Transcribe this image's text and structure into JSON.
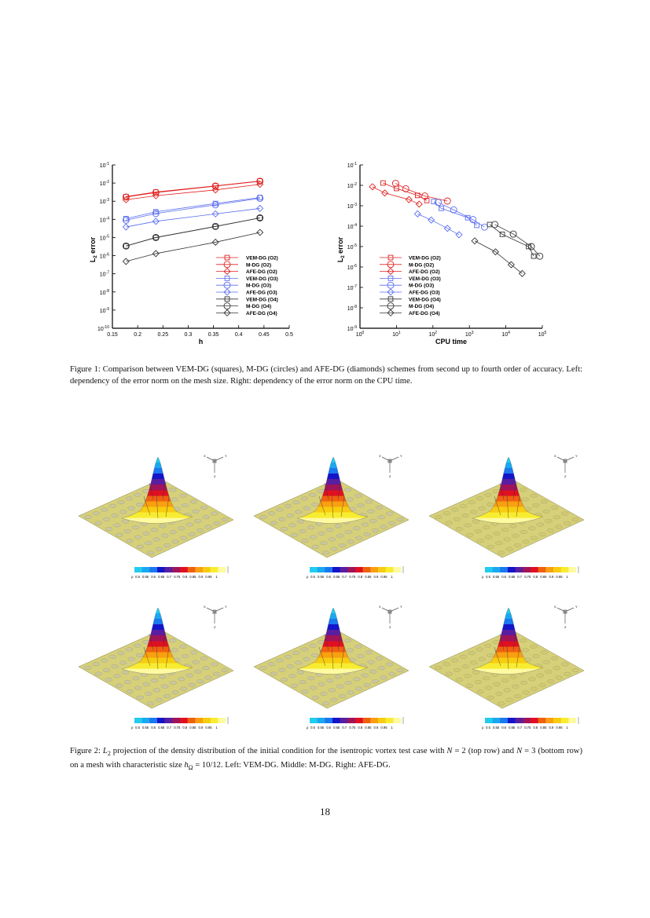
{
  "chart_data": [
    {
      "type": "line",
      "xlabel": "h",
      "ylabel": {
        "main": "L",
        "sub": "2",
        "rest": " error"
      },
      "xscale": "linear",
      "yscale": "log",
      "xlim": [
        0.15,
        0.5
      ],
      "ylim": [
        1e-10,
        0.1
      ],
      "xticks": [
        "0.15",
        "0.2",
        "0.25",
        "0.3",
        "0.35",
        "0.4",
        "0.45",
        "0.5"
      ],
      "yticks": [
        {
          "b": "10",
          "e": "-1"
        },
        {
          "b": "10",
          "e": "-2"
        },
        {
          "b": "10",
          "e": "-3"
        },
        {
          "b": "10",
          "e": "-4"
        },
        {
          "b": "10",
          "e": "-5"
        },
        {
          "b": "10",
          "e": "-6"
        },
        {
          "b": "10",
          "e": "-7"
        },
        {
          "b": "10",
          "e": "-8"
        },
        {
          "b": "10",
          "e": "-9"
        },
        {
          "b": "10",
          "e": "-10"
        }
      ],
      "legend_position": "bottom-right",
      "series": [
        {
          "name": "VEM-DG (O2)",
          "color": "#e02020",
          "marker": "square",
          "x": [
            0.177,
            0.236,
            0.354,
            0.442
          ],
          "y": [
            0.0018,
            0.0032,
            0.007,
            0.013
          ]
        },
        {
          "name": "M-DG (O2)",
          "color": "#e02020",
          "marker": "circle",
          "x": [
            0.177,
            0.236,
            0.354,
            0.442
          ],
          "y": [
            0.0017,
            0.003,
            0.0068,
            0.0125
          ]
        },
        {
          "name": "AFE-DG (O2)",
          "color": "#e02020",
          "marker": "diamond",
          "x": [
            0.177,
            0.236,
            0.354,
            0.442
          ],
          "y": [
            0.0012,
            0.002,
            0.0042,
            0.0085
          ]
        },
        {
          "name": "VEM-DG (O3)",
          "color": "#5a6cf0",
          "marker": "square",
          "x": [
            0.177,
            0.236,
            0.354,
            0.442
          ],
          "y": [
            0.00011,
            0.00026,
            0.00075,
            0.0016
          ]
        },
        {
          "name": "M-DG (O3)",
          "color": "#5a6cf0",
          "marker": "circle",
          "x": [
            0.177,
            0.236,
            0.354,
            0.442
          ],
          "y": [
            9e-05,
            0.00021,
            0.00063,
            0.00145
          ]
        },
        {
          "name": "AFE-DG (O3)",
          "color": "#5a6cf0",
          "marker": "diamond",
          "x": [
            0.177,
            0.236,
            0.354,
            0.442
          ],
          "y": [
            3.8e-05,
            7.8e-05,
            0.0002,
            0.0004
          ]
        },
        {
          "name": "VEM-DG (O4)",
          "color": "#333333",
          "marker": "square",
          "x": [
            0.177,
            0.236,
            0.354,
            0.442
          ],
          "y": [
            3.4e-06,
            1e-05,
            4e-05,
            0.00012
          ]
        },
        {
          "name": "M-DG (O4)",
          "color": "#333333",
          "marker": "circle",
          "x": [
            0.177,
            0.236,
            0.354,
            0.442
          ],
          "y": [
            3.4e-06,
            1e-05,
            4.1e-05,
            0.00012
          ]
        },
        {
          "name": "AFE-DG (O4)",
          "color": "#333333",
          "marker": "diamond",
          "x": [
            0.177,
            0.236,
            0.354,
            0.442
          ],
          "y": [
            4.8e-07,
            1.3e-06,
            5.5e-06,
            1.9e-05
          ]
        }
      ]
    },
    {
      "type": "line",
      "xlabel": "CPU time",
      "ylabel": {
        "main": "L",
        "sub": "2",
        "rest": " error"
      },
      "xscale": "log",
      "yscale": "log",
      "xlim": [
        1,
        100000
      ],
      "ylim": [
        1e-09,
        0.1
      ],
      "xticks": [
        {
          "b": "10",
          "e": "0"
        },
        {
          "b": "10",
          "e": "1"
        },
        {
          "b": "10",
          "e": "2"
        },
        {
          "b": "10",
          "e": "3"
        },
        {
          "b": "10",
          "e": "4"
        },
        {
          "b": "10",
          "e": "5"
        }
      ],
      "yticks": [
        {
          "b": "10",
          "e": "-1"
        },
        {
          "b": "10",
          "e": "-2"
        },
        {
          "b": "10",
          "e": "-3"
        },
        {
          "b": "10",
          "e": "-4"
        },
        {
          "b": "10",
          "e": "-5"
        },
        {
          "b": "10",
          "e": "-6"
        },
        {
          "b": "10",
          "e": "-7"
        },
        {
          "b": "10",
          "e": "-8"
        },
        {
          "b": "10",
          "e": "-9"
        }
      ],
      "legend_position": "bottom-left",
      "series": [
        {
          "name": "VEM-DG (O2)",
          "color": "#e02020",
          "marker": "square",
          "x": [
            4.3,
            10,
            38,
            68
          ],
          "y": [
            0.013,
            0.007,
            0.0032,
            0.0018
          ]
        },
        {
          "name": "M-DG (O2)",
          "color": "#e02020",
          "marker": "circle",
          "x": [
            9.5,
            18,
            60,
            250
          ],
          "y": [
            0.0125,
            0.0068,
            0.003,
            0.0017
          ]
        },
        {
          "name": "AFE-DG (O2)",
          "color": "#e02020",
          "marker": "diamond",
          "x": [
            2.2,
            4.8,
            22,
            42
          ],
          "y": [
            0.0085,
            0.0042,
            0.002,
            0.0012
          ]
        },
        {
          "name": "VEM-DG (O3)",
          "color": "#5a6cf0",
          "marker": "square",
          "x": [
            105,
            170,
            900,
            1600
          ],
          "y": [
            0.0016,
            0.00075,
            0.00026,
            0.00011
          ]
        },
        {
          "name": "M-DG (O3)",
          "color": "#5a6cf0",
          "marker": "circle",
          "x": [
            140,
            370,
            1250,
            2600
          ],
          "y": [
            0.00145,
            0.00063,
            0.00021,
            9e-05
          ]
        },
        {
          "name": "AFE-DG (O3)",
          "color": "#5a6cf0",
          "marker": "diamond",
          "x": [
            38,
            90,
            250,
            520
          ],
          "y": [
            0.0004,
            0.0002,
            7.8e-05,
            3.8e-05
          ]
        },
        {
          "name": "VEM-DG (O4)",
          "color": "#333333",
          "marker": "square",
          "x": [
            3600,
            8000,
            42000,
            58000
          ],
          "y": [
            0.00012,
            4e-05,
            1e-05,
            3.4e-06
          ]
        },
        {
          "name": "M-DG (O4)",
          "color": "#333333",
          "marker": "circle",
          "x": [
            5000,
            16000,
            50000,
            85000
          ],
          "y": [
            0.00012,
            4.1e-05,
            1e-05,
            3.4e-06
          ]
        },
        {
          "name": "AFE-DG (O4)",
          "color": "#333333",
          "marker": "diamond",
          "x": [
            1400,
            5200,
            14000,
            28000
          ],
          "y": [
            1.9e-05,
            5.5e-06,
            1.3e-06,
            4.8e-07
          ]
        }
      ]
    }
  ],
  "figure1": {
    "caption": "Figure 1: Comparison between VEM-DG (squares), M-DG (circles) and AFE-DG (diamonds) schemes from second up to fourth order of accuracy. Left: dependency of the error norm on the mesh size. Right: dependency of the error norm on the CPU time."
  },
  "figure2": {
    "caption_parts": [
      "Figure 2: ",
      "L",
      "2",
      " projection of the density distribution of the initial condition for the isentropic vortex test case with ",
      "N",
      " = 2 (top row) and ",
      "N",
      " = 3 (bottom row) on a mesh with characteristic size ",
      "h",
      "Ω",
      " = 10/12. Left: VEM-DG. Middle: M-DG. Right: AFE-DG."
    ],
    "colorbar_var": "ρ",
    "colorbar_ticks": [
      "0.5",
      "0.55",
      "0.6",
      "0.65",
      "0.7",
      "0.75",
      "0.8",
      "0.85",
      "0.9",
      "0.95",
      "1"
    ],
    "colorbar_colors": [
      "#22ccf0",
      "#1aa8f0",
      "#1a78f0",
      "#1414c8",
      "#5a1ea0",
      "#a0145a",
      "#e01020",
      "#f06010",
      "#f8a010",
      "#f8cc10",
      "#f8ec30",
      "#fdfaa0"
    ],
    "axes_labels": {
      "x": "X",
      "y": "Y",
      "z": "Z"
    },
    "panels": [
      {
        "row": "N = 2",
        "scheme": "VEM-DG"
      },
      {
        "row": "N = 2",
        "scheme": "M-DG"
      },
      {
        "row": "N = 2",
        "scheme": "AFE-DG"
      },
      {
        "row": "N = 3",
        "scheme": "VEM-DG"
      },
      {
        "row": "N = 3",
        "scheme": "M-DG"
      },
      {
        "row": "N = 3",
        "scheme": "AFE-DG"
      }
    ]
  },
  "page_number": "18"
}
